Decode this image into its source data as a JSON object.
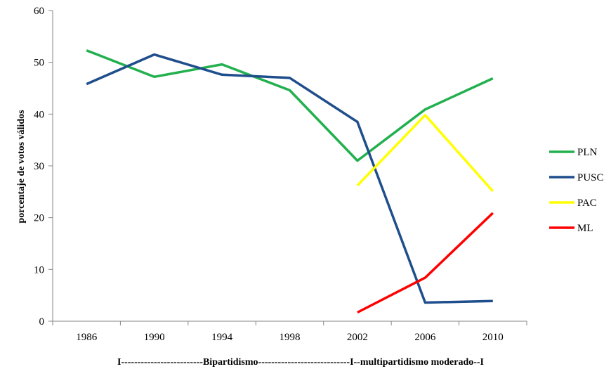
{
  "chart_data": {
    "type": "line",
    "title": "",
    "ylabel": "porcentaje de votos válidos",
    "xlabel": "",
    "footer": "I-------------------------Bipartidismo----------------------------I--multipartidismo moderado--I",
    "x": [
      "1986",
      "1990",
      "1994",
      "1998",
      "2002",
      "2006",
      "2010"
    ],
    "ylim": [
      0,
      60
    ],
    "yticks": [
      0,
      10,
      20,
      30,
      40,
      50,
      60
    ],
    "grid": false,
    "legend_position": "right",
    "series": [
      {
        "name": "PLN",
        "color": "#22B04E",
        "values": [
          52.3,
          47.2,
          49.6,
          44.6,
          31.0,
          40.9,
          46.9
        ]
      },
      {
        "name": "PUSC",
        "color": "#1F4E8C",
        "values": [
          45.8,
          51.5,
          47.6,
          47.0,
          38.5,
          3.6,
          3.9
        ]
      },
      {
        "name": "PAC",
        "color": "#FFFF00",
        "values": [
          null,
          null,
          null,
          null,
          26.2,
          39.8,
          25.1
        ]
      },
      {
        "name": "ML",
        "color": "#FF0000",
        "values": [
          null,
          null,
          null,
          null,
          1.7,
          8.4,
          20.9
        ]
      }
    ]
  }
}
